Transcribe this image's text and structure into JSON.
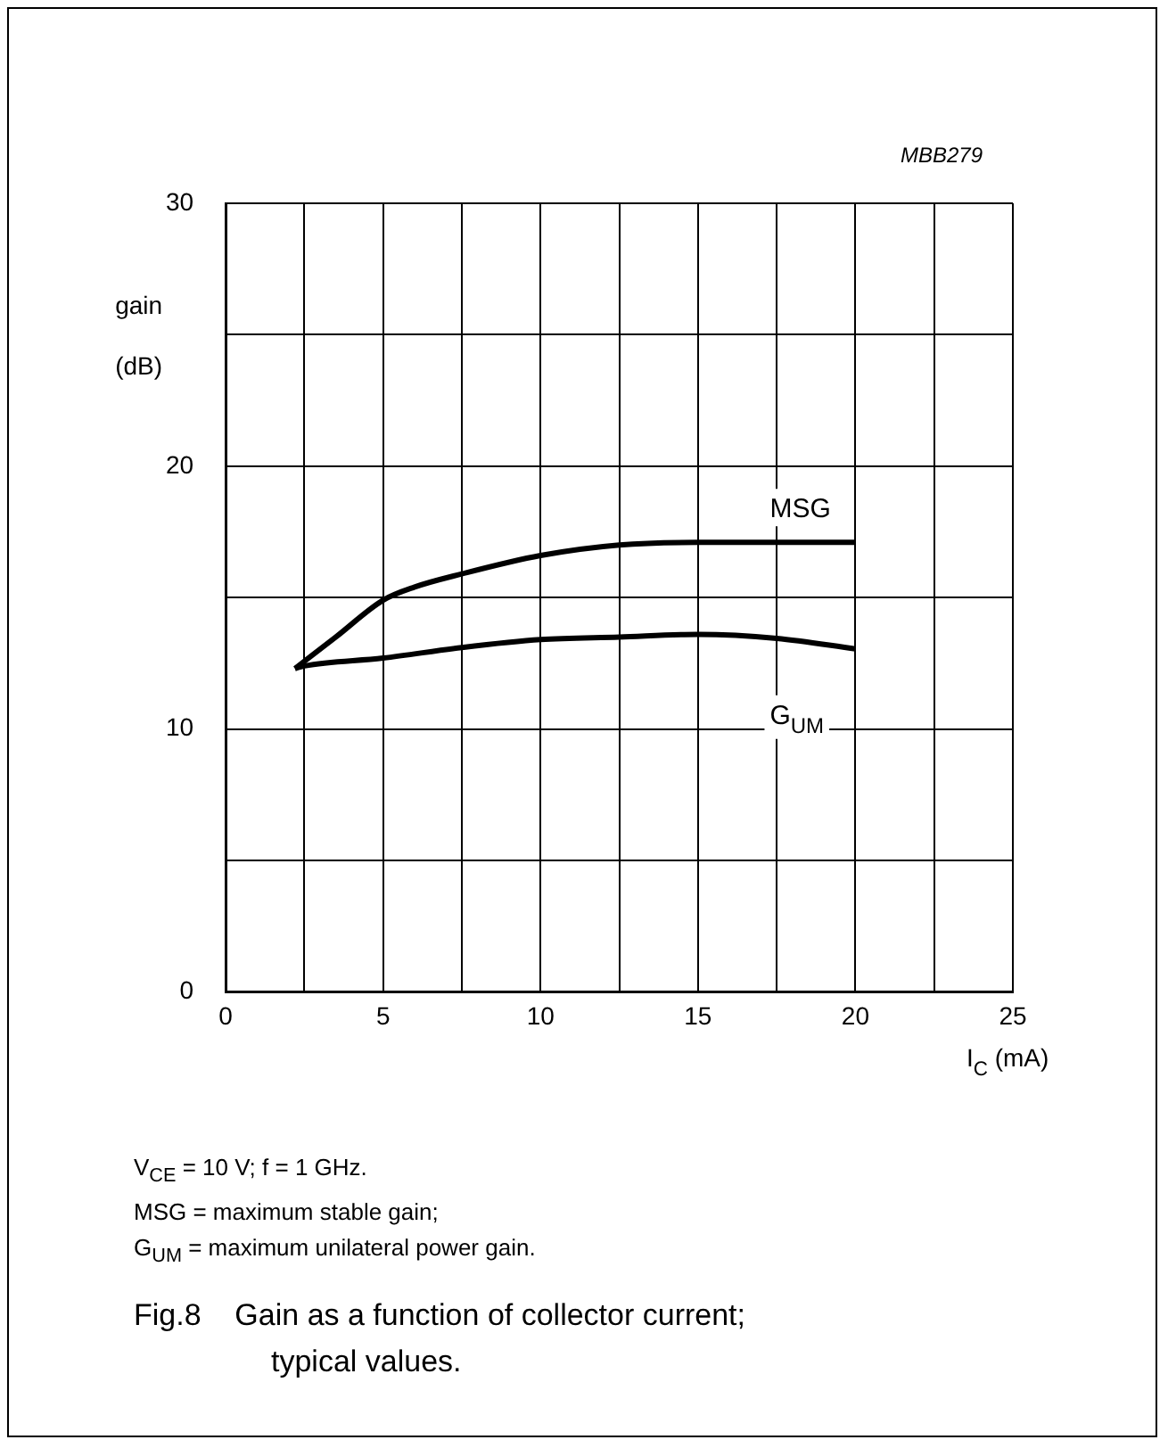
{
  "chart_data": {
    "type": "line",
    "title": "Fig.8    Gain as a function of collector current; typical values.",
    "xlabel": "I$_{C}$ (mA)",
    "ylabel": "gain (dB)",
    "annotations": [
      "MBB279",
      "V$_{CE}$ = 10 V; f = 1 GHz.",
      "MSG = maximum stable gain;",
      "G$_{UM}$ = maximum unilateral power gain."
    ],
    "series": [
      {
        "name": "MSG",
        "color": "#000000",
        "x": [
          2.2,
          3.5,
          5,
          6,
          7.5,
          10,
          12.5,
          15,
          17.5,
          20
        ],
        "values": [
          12.3,
          13.5,
          14.9,
          15.4,
          15.9,
          16.6,
          17.0,
          17.1,
          17.1,
          17.1
        ]
      },
      {
        "name": "G$_{UM}$",
        "color": "#000000",
        "x": [
          2.2,
          2.5,
          5,
          7.5,
          10,
          12.5,
          15,
          17.5,
          20
        ],
        "values": [
          12.3,
          12.4,
          12.7,
          13.1,
          13.4,
          13.5,
          13.6,
          13.45,
          13.05
        ]
      }
    ],
    "xlim": [
      0,
      25
    ],
    "xticks": [
      0,
      {
        "value": 2.5,
        "label": null
      },
      5,
      {
        "value": 7.5,
        "label": null
      },
      10,
      {
        "value": 12.5,
        "label": null
      },
      15,
      {
        "value": 17.5,
        "label": null
      },
      20,
      {
        "value": 22.5,
        "label": null
      },
      25
    ],
    "ylim": [
      0,
      30
    ],
    "yticks": [
      0,
      {
        "value": 5,
        "label": null
      },
      10,
      {
        "value": 15,
        "label": null
      },
      20,
      {
        "value": 25,
        "label": null
      },
      30
    ],
    "grid": true,
    "legend": false,
    "marker": "none",
    "line_style": "solid"
  }
}
